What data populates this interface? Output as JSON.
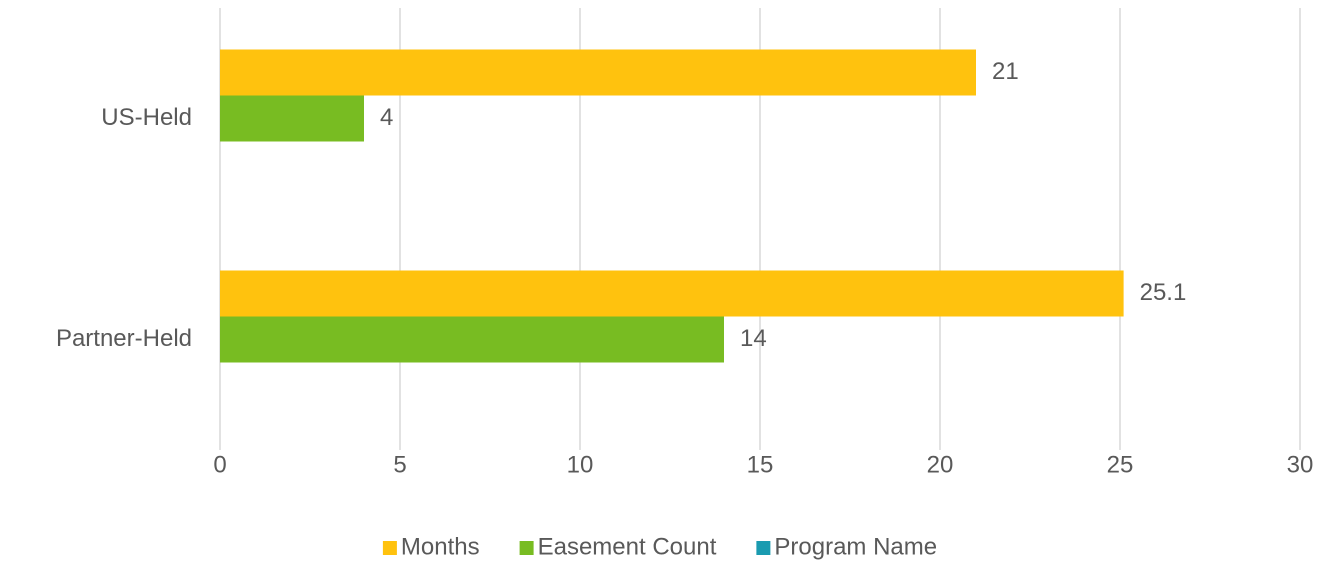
{
  "chart_data": {
    "type": "hbar",
    "categories": [
      "US-Held",
      "Partner-Held"
    ],
    "series": [
      {
        "name": "Months",
        "color": "#FFC20E",
        "values": [
          21,
          25.1
        ]
      },
      {
        "name": "Easement Count",
        "color": "#78BC22",
        "values": [
          4,
          14
        ]
      },
      {
        "name": "Program Name",
        "color": "#1A9BB0",
        "values": [
          null,
          null
        ]
      }
    ],
    "xlim": [
      0,
      30
    ],
    "xticks": [
      0,
      5,
      10,
      15,
      20,
      25,
      30
    ],
    "grid": true,
    "legend": "bottom"
  }
}
